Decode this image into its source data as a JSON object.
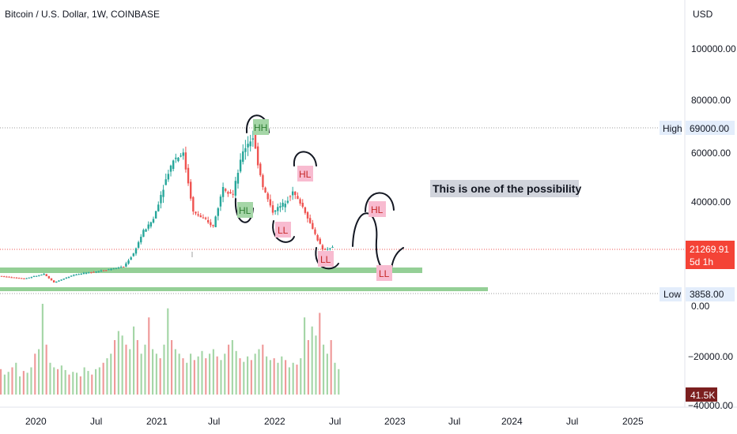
{
  "header": {
    "title": "Bitcoin / U.S. Dollar, 1W, COINBASE",
    "currency": "USD"
  },
  "colors": {
    "up": "#26a69a",
    "down": "#ef5350",
    "zone": "#81c784",
    "hh_hl_green_bg": "#a5d6a7",
    "ll_hl_red_bg": "#f8bbd0",
    "annotation_bg": "#d1d4dc",
    "price_label_bg": "#f44336",
    "volume_label_bg": "#7b1f1f"
  },
  "chart_data": {
    "type": "candlestick",
    "title": "Bitcoin / U.S. Dollar, 1W, COINBASE",
    "y_unit": "USD",
    "y_tick_labels": [
      "100000.00",
      "80000.00",
      "60000.00",
      "40000.00",
      "0.00",
      "−20000.00",
      "−40000.00"
    ],
    "x_tick_labels": [
      "2020",
      "Jul",
      "2021",
      "Jul",
      "2022",
      "Jul",
      "2023",
      "Jul",
      "2024",
      "Jul",
      "2025"
    ],
    "levels": [
      {
        "label": "High",
        "value": "69000.00"
      },
      {
        "label": "Low",
        "value": "3858.00"
      }
    ],
    "current_price": "21269.91",
    "countdown": "5d 1h",
    "volume_label": "41.5K",
    "annotations": [
      {
        "text": "HH",
        "kind": "green"
      },
      {
        "text": "HL",
        "kind": "green"
      },
      {
        "text": "HL",
        "kind": "red"
      },
      {
        "text": "LL",
        "kind": "red"
      },
      {
        "text": "LL",
        "kind": "red"
      },
      {
        "text": "HL",
        "kind": "red"
      },
      {
        "text": "LL",
        "kind": "red"
      }
    ],
    "note": "This is one of the possibility",
    "price_path": [
      [
        "2019-09",
        9000
      ],
      [
        "2019-12",
        7200
      ],
      [
        "2020-02",
        9800
      ],
      [
        "2020-03",
        5000
      ],
      [
        "2020-05",
        9500
      ],
      [
        "2020-08",
        11500
      ],
      [
        "2020-10",
        13000
      ],
      [
        "2020-11",
        18500
      ],
      [
        "2020-12",
        28900
      ],
      [
        "2021-01",
        34000
      ],
      [
        "2021-02",
        47000
      ],
      [
        "2021-03",
        58000
      ],
      [
        "2021-04",
        60000
      ],
      [
        "2021-05",
        37000
      ],
      [
        "2021-06",
        34000
      ],
      [
        "2021-07",
        31000
      ],
      [
        "2021-08",
        47000
      ],
      [
        "2021-09",
        44000
      ],
      [
        "2021-10",
        61000
      ],
      [
        "2021-11",
        66000
      ],
      [
        "2021-12",
        47000
      ],
      [
        "2022-01",
        37000
      ],
      [
        "2022-02",
        40000
      ],
      [
        "2022-03",
        45000
      ],
      [
        "2022-04",
        39000
      ],
      [
        "2022-05",
        30000
      ],
      [
        "2022-06",
        20000
      ],
      [
        "2022-07",
        21269.91
      ]
    ],
    "volume_relative": [
      0.28,
      0.22,
      0.25,
      0.3,
      0.35,
      0.2,
      0.26,
      0.24,
      0.3,
      0.45,
      0.5,
      1.0,
      0.55,
      0.35,
      0.3,
      0.28,
      0.32,
      0.27,
      0.22,
      0.25,
      0.24,
      0.2,
      0.3,
      0.26,
      0.22,
      0.28,
      0.3,
      0.35,
      0.4,
      0.45,
      0.6,
      0.7,
      0.65,
      0.55,
      0.5,
      0.75,
      0.6,
      0.45,
      0.55,
      0.85,
      0.5,
      0.45,
      0.4,
      0.55,
      0.95,
      0.6,
      0.5,
      0.45,
      0.4,
      0.35,
      0.45,
      0.38,
      0.42,
      0.48,
      0.4,
      0.45,
      0.5,
      0.42,
      0.38,
      0.45,
      0.55,
      0.6,
      0.48,
      0.4,
      0.36,
      0.42,
      0.38,
      0.45,
      0.5,
      0.55,
      0.42,
      0.38,
      0.4,
      0.35,
      0.42,
      0.38,
      0.3,
      0.35,
      0.33,
      0.4,
      0.85,
      0.6,
      0.75,
      0.65,
      0.9,
      0.55,
      0.45,
      0.6,
      0.35,
      0.28
    ]
  }
}
